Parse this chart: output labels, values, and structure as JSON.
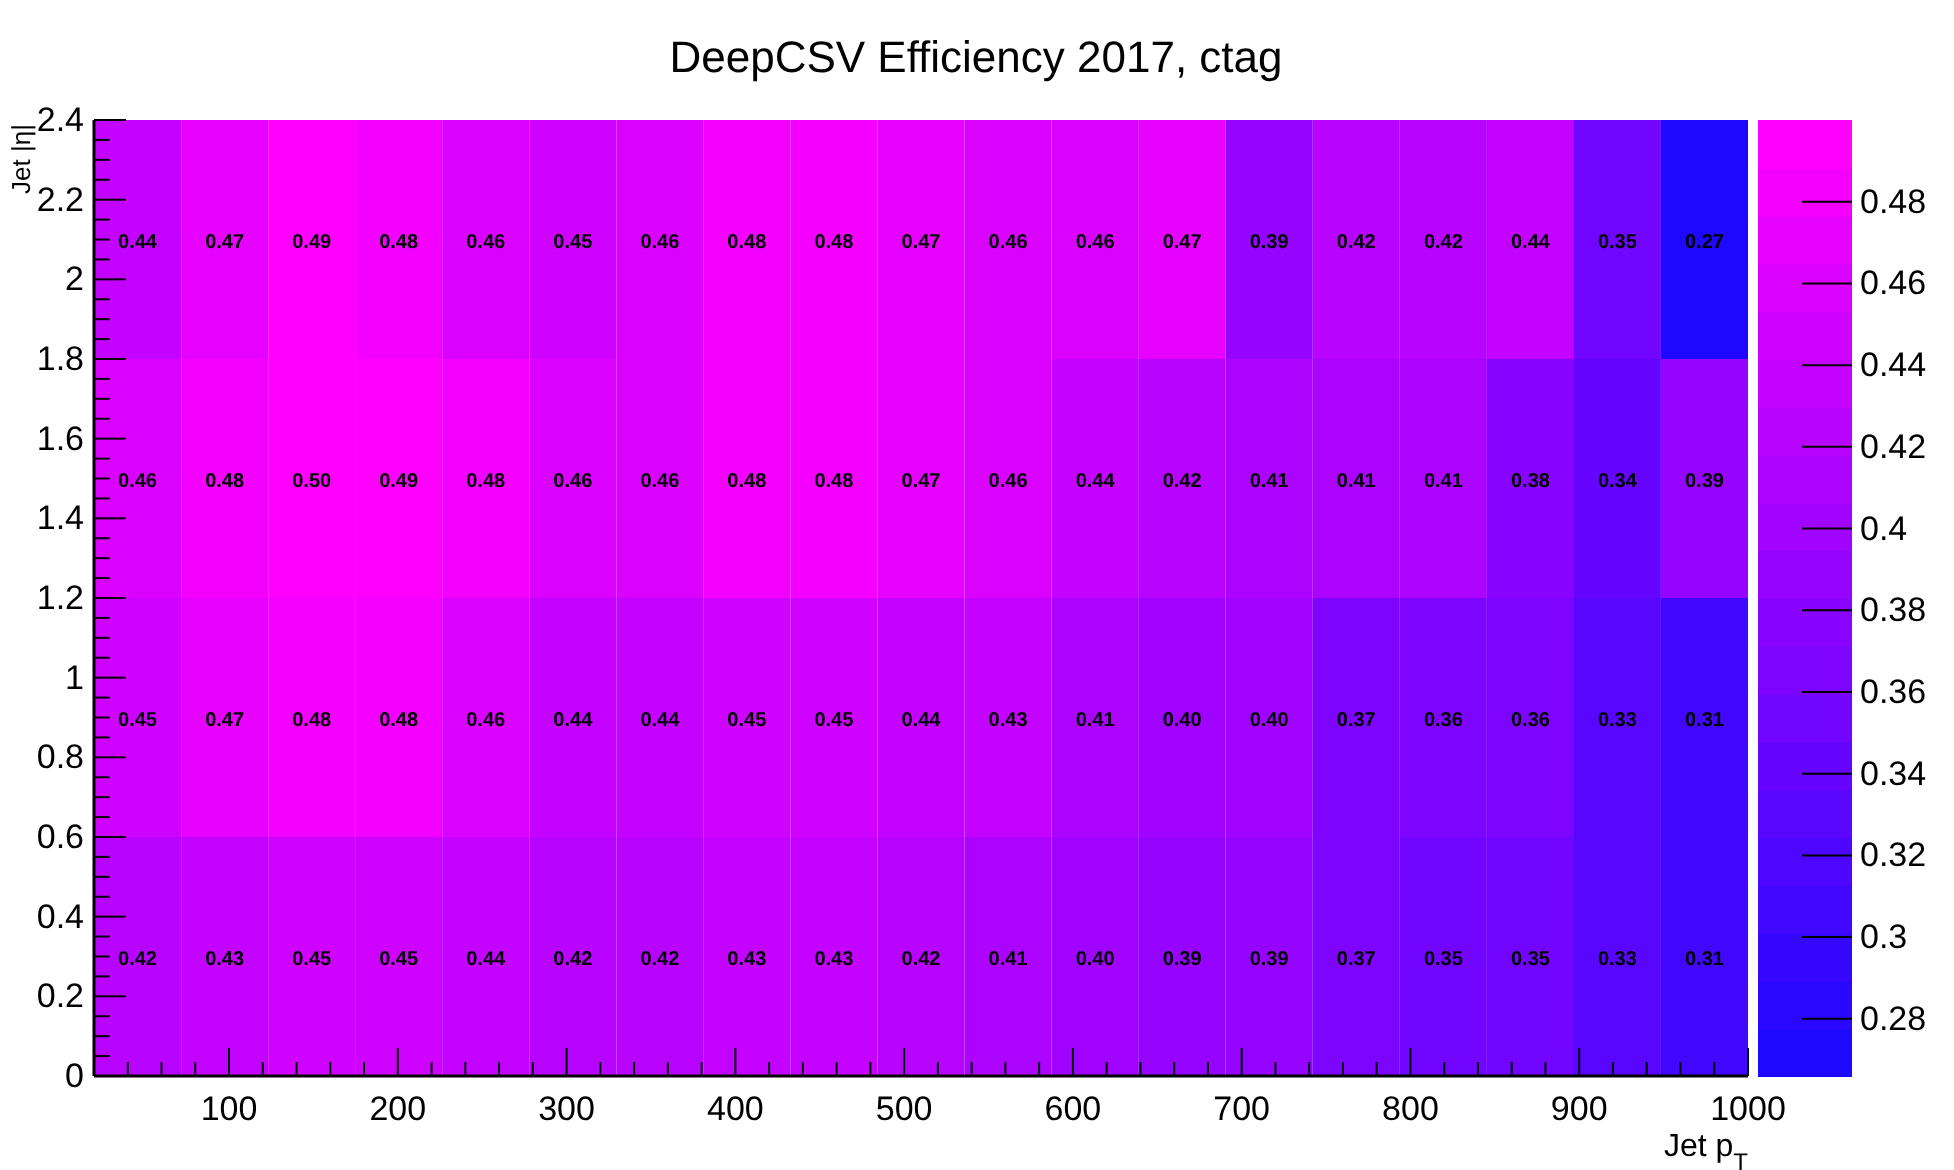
{
  "chart_data": {
    "type": "heatmap",
    "title": "DeepCSV Efficiency 2017, ctag",
    "xlabel": "Jet p$_{T}$",
    "ylabel": "Jet |η|",
    "x": [
      45.8,
      97.4,
      149.0,
      200.5,
      252.1,
      303.7,
      355.3,
      406.8,
      458.4,
      510.0,
      561.6,
      613.2,
      664.7,
      716.3,
      767.9,
      819.5,
      871.1,
      922.6,
      974.2
    ],
    "y": [
      2.1,
      1.5,
      0.9,
      0.3
    ],
    "cell_labels": [
      [
        "0.44",
        "0.47",
        "0.49",
        "0.48",
        "0.46",
        "0.45",
        "0.46",
        "0.48",
        "0.48",
        "0.47",
        "0.46",
        "0.46",
        "0.47",
        "0.39",
        "0.42",
        "0.42",
        "0.44",
        "0.35",
        "0.27"
      ],
      [
        "0.46",
        "0.48",
        "0.50",
        "0.49",
        "0.48",
        "0.46",
        "0.46",
        "0.48",
        "0.48",
        "0.47",
        "0.46",
        "0.44",
        "0.42",
        "0.41",
        "0.41",
        "0.41",
        "0.38",
        "0.34",
        "0.39"
      ],
      [
        "0.45",
        "0.47",
        "0.48",
        "0.48",
        "0.46",
        "0.44",
        "0.44",
        "0.45",
        "0.45",
        "0.44",
        "0.43",
        "0.41",
        "0.40",
        "0.40",
        "0.37",
        "0.36",
        "0.36",
        "0.33",
        "0.31"
      ],
      [
        "0.42",
        "0.43",
        "0.45",
        "0.45",
        "0.44",
        "0.42",
        "0.42",
        "0.43",
        "0.43",
        "0.42",
        "0.41",
        "0.40",
        "0.39",
        "0.39",
        "0.37",
        "0.35",
        "0.35",
        "0.33",
        "0.31"
      ]
    ],
    "cells": [
      [
        0.44,
        0.47,
        0.49,
        0.48,
        0.46,
        0.45,
        0.46,
        0.48,
        0.48,
        0.47,
        0.46,
        0.46,
        0.47,
        0.39,
        0.42,
        0.42,
        0.44,
        0.35,
        0.27
      ],
      [
        0.46,
        0.48,
        0.5,
        0.49,
        0.48,
        0.46,
        0.46,
        0.48,
        0.48,
        0.47,
        0.46,
        0.44,
        0.42,
        0.41,
        0.41,
        0.41,
        0.38,
        0.34,
        0.39
      ],
      [
        0.45,
        0.47,
        0.48,
        0.48,
        0.46,
        0.44,
        0.44,
        0.45,
        0.45,
        0.44,
        0.43,
        0.41,
        0.4,
        0.4,
        0.37,
        0.36,
        0.36,
        0.33,
        0.31
      ],
      [
        0.42,
        0.43,
        0.45,
        0.45,
        0.44,
        0.42,
        0.42,
        0.43,
        0.43,
        0.42,
        0.41,
        0.4,
        0.39,
        0.39,
        0.37,
        0.35,
        0.35,
        0.33,
        0.31
      ]
    ],
    "data_labels": true,
    "xlim": [
      20,
      1000
    ],
    "xticks": [
      {
        "value": 40,
        "label": null
      },
      {
        "value": 60,
        "label": null
      },
      {
        "value": 80,
        "label": null
      },
      100,
      {
        "value": 120,
        "label": null
      },
      {
        "value": 140,
        "label": null
      },
      {
        "value": 160,
        "label": null
      },
      {
        "value": 180,
        "label": null
      },
      200,
      {
        "value": 220,
        "label": null
      },
      {
        "value": 240,
        "label": null
      },
      {
        "value": 260,
        "label": null
      },
      {
        "value": 280,
        "label": null
      },
      300,
      {
        "value": 320,
        "label": null
      },
      {
        "value": 340,
        "label": null
      },
      {
        "value": 360,
        "label": null
      },
      {
        "value": 380,
        "label": null
      },
      400,
      {
        "value": 420,
        "label": null
      },
      {
        "value": 440,
        "label": null
      },
      {
        "value": 460,
        "label": null
      },
      {
        "value": 480,
        "label": null
      },
      500,
      {
        "value": 520,
        "label": null
      },
      {
        "value": 540,
        "label": null
      },
      {
        "value": 560,
        "label": null
      },
      {
        "value": 580,
        "label": null
      },
      600,
      {
        "value": 620,
        "label": null
      },
      {
        "value": 640,
        "label": null
      },
      {
        "value": 660,
        "label": null
      },
      {
        "value": 680,
        "label": null
      },
      700,
      {
        "value": 720,
        "label": null
      },
      {
        "value": 740,
        "label": null
      },
      {
        "value": 760,
        "label": null
      },
      {
        "value": 780,
        "label": null
      },
      800,
      {
        "value": 820,
        "label": null
      },
      {
        "value": 840,
        "label": null
      },
      {
        "value": 860,
        "label": null
      },
      {
        "value": 880,
        "label": null
      },
      900,
      {
        "value": 920,
        "label": null
      },
      {
        "value": 940,
        "label": null
      },
      {
        "value": 960,
        "label": null
      },
      {
        "value": 980,
        "label": null
      },
      1000
    ],
    "ylim": [
      0,
      2.4
    ],
    "yticks": [
      0,
      {
        "value": 0.05,
        "label": null
      },
      {
        "value": 0.1,
        "label": null
      },
      {
        "value": 0.15,
        "label": null
      },
      0.2,
      {
        "value": 0.25,
        "label": null
      },
      {
        "value": 0.3,
        "label": null
      },
      {
        "value": 0.35,
        "label": null
      },
      0.4,
      {
        "value": 0.45,
        "label": null
      },
      {
        "value": 0.5,
        "label": null
      },
      {
        "value": 0.55,
        "label": null
      },
      0.6,
      {
        "value": 0.65,
        "label": null
      },
      {
        "value": 0.7,
        "label": null
      },
      {
        "value": 0.75,
        "label": null
      },
      0.8,
      {
        "value": 0.85,
        "label": null
      },
      {
        "value": 0.9,
        "label": null
      },
      {
        "value": 0.95,
        "label": null
      },
      1,
      {
        "value": 1.05,
        "label": null
      },
      {
        "value": 1.1,
        "label": null
      },
      {
        "value": 1.15,
        "label": null
      },
      1.2,
      {
        "value": 1.25,
        "label": null
      },
      {
        "value": 1.3,
        "label": null
      },
      {
        "value": 1.35,
        "label": null
      },
      1.4,
      {
        "value": 1.45,
        "label": null
      },
      {
        "value": 1.5,
        "label": null
      },
      {
        "value": 1.55,
        "label": null
      },
      1.6,
      {
        "value": 1.65,
        "label": null
      },
      {
        "value": 1.7,
        "label": null
      },
      {
        "value": 1.75,
        "label": null
      },
      1.8,
      {
        "value": 1.85,
        "label": null
      },
      {
        "value": 1.9,
        "label": null
      },
      {
        "value": 1.95,
        "label": null
      },
      2,
      {
        "value": 2.05,
        "label": null
      },
      {
        "value": 2.1,
        "label": null
      },
      {
        "value": 2.15,
        "label": null
      },
      2.2,
      {
        "value": 2.25,
        "label": null
      },
      {
        "value": 2.3,
        "label": null
      },
      {
        "value": 2.35,
        "label": null
      },
      2.4
    ],
    "clim": [
      0.266,
      0.5
    ],
    "cticks": [
      0.28,
      0.3,
      0.32,
      0.34,
      0.36,
      0.38,
      0.4,
      0.42,
      0.44,
      0.46,
      0.48
    ]
  }
}
